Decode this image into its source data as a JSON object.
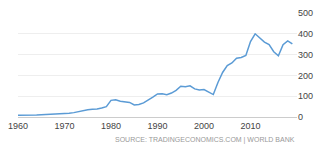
{
  "chart_data": {
    "type": "line",
    "x": [
      1960,
      1961,
      1962,
      1963,
      1964,
      1965,
      1966,
      1967,
      1968,
      1969,
      1970,
      1971,
      1972,
      1973,
      1974,
      1975,
      1976,
      1977,
      1978,
      1979,
      1980,
      1981,
      1982,
      1983,
      1984,
      1985,
      1986,
      1987,
      1988,
      1989,
      1990,
      1991,
      1992,
      1993,
      1994,
      1995,
      1996,
      1997,
      1998,
      1999,
      2000,
      2001,
      2002,
      2003,
      2004,
      2005,
      2006,
      2007,
      2008,
      2009,
      2010,
      2011,
      2012,
      2013,
      2014,
      2015,
      2016,
      2017,
      2018,
      2019
    ],
    "values": [
      8.0,
      7.9,
      8.5,
      9.3,
      10.2,
      11.3,
      12.0,
      13.4,
      14.7,
      16.5,
      17.5,
      18.5,
      21.0,
      26.0,
      32.0,
      35.0,
      37.0,
      38.0,
      43.0,
      50.0,
      80.0,
      83.0,
      76.0,
      74.0,
      70.0,
      58.0,
      60.0,
      68.0,
      84.0,
      96.0,
      111.0,
      112.0,
      107.0,
      115.0,
      128.0,
      148.0,
      145.0,
      150.0,
      135.0,
      130.0,
      132.0,
      120.0,
      108.0,
      166.0,
      214.0,
      247.0,
      260.0,
      283.0,
      286.0,
      296.0,
      363.0,
      400.0,
      382.0,
      360.0,
      348.0,
      314.0,
      294.0,
      348.0,
      366.0,
      351.0
    ],
    "color": "#5b9bd5",
    "xlim": [
      1960,
      2020
    ],
    "xticks": [
      1960,
      1970,
      1980,
      1990,
      2000,
      2010
    ],
    "ylim": [
      0,
      500
    ],
    "yticks": [
      0,
      100,
      200,
      300,
      400,
      500
    ],
    "grid": true,
    "annotations": [
      "SOURCE: TRADINGECONOMICS.COM | WORLD BANK"
    ]
  }
}
